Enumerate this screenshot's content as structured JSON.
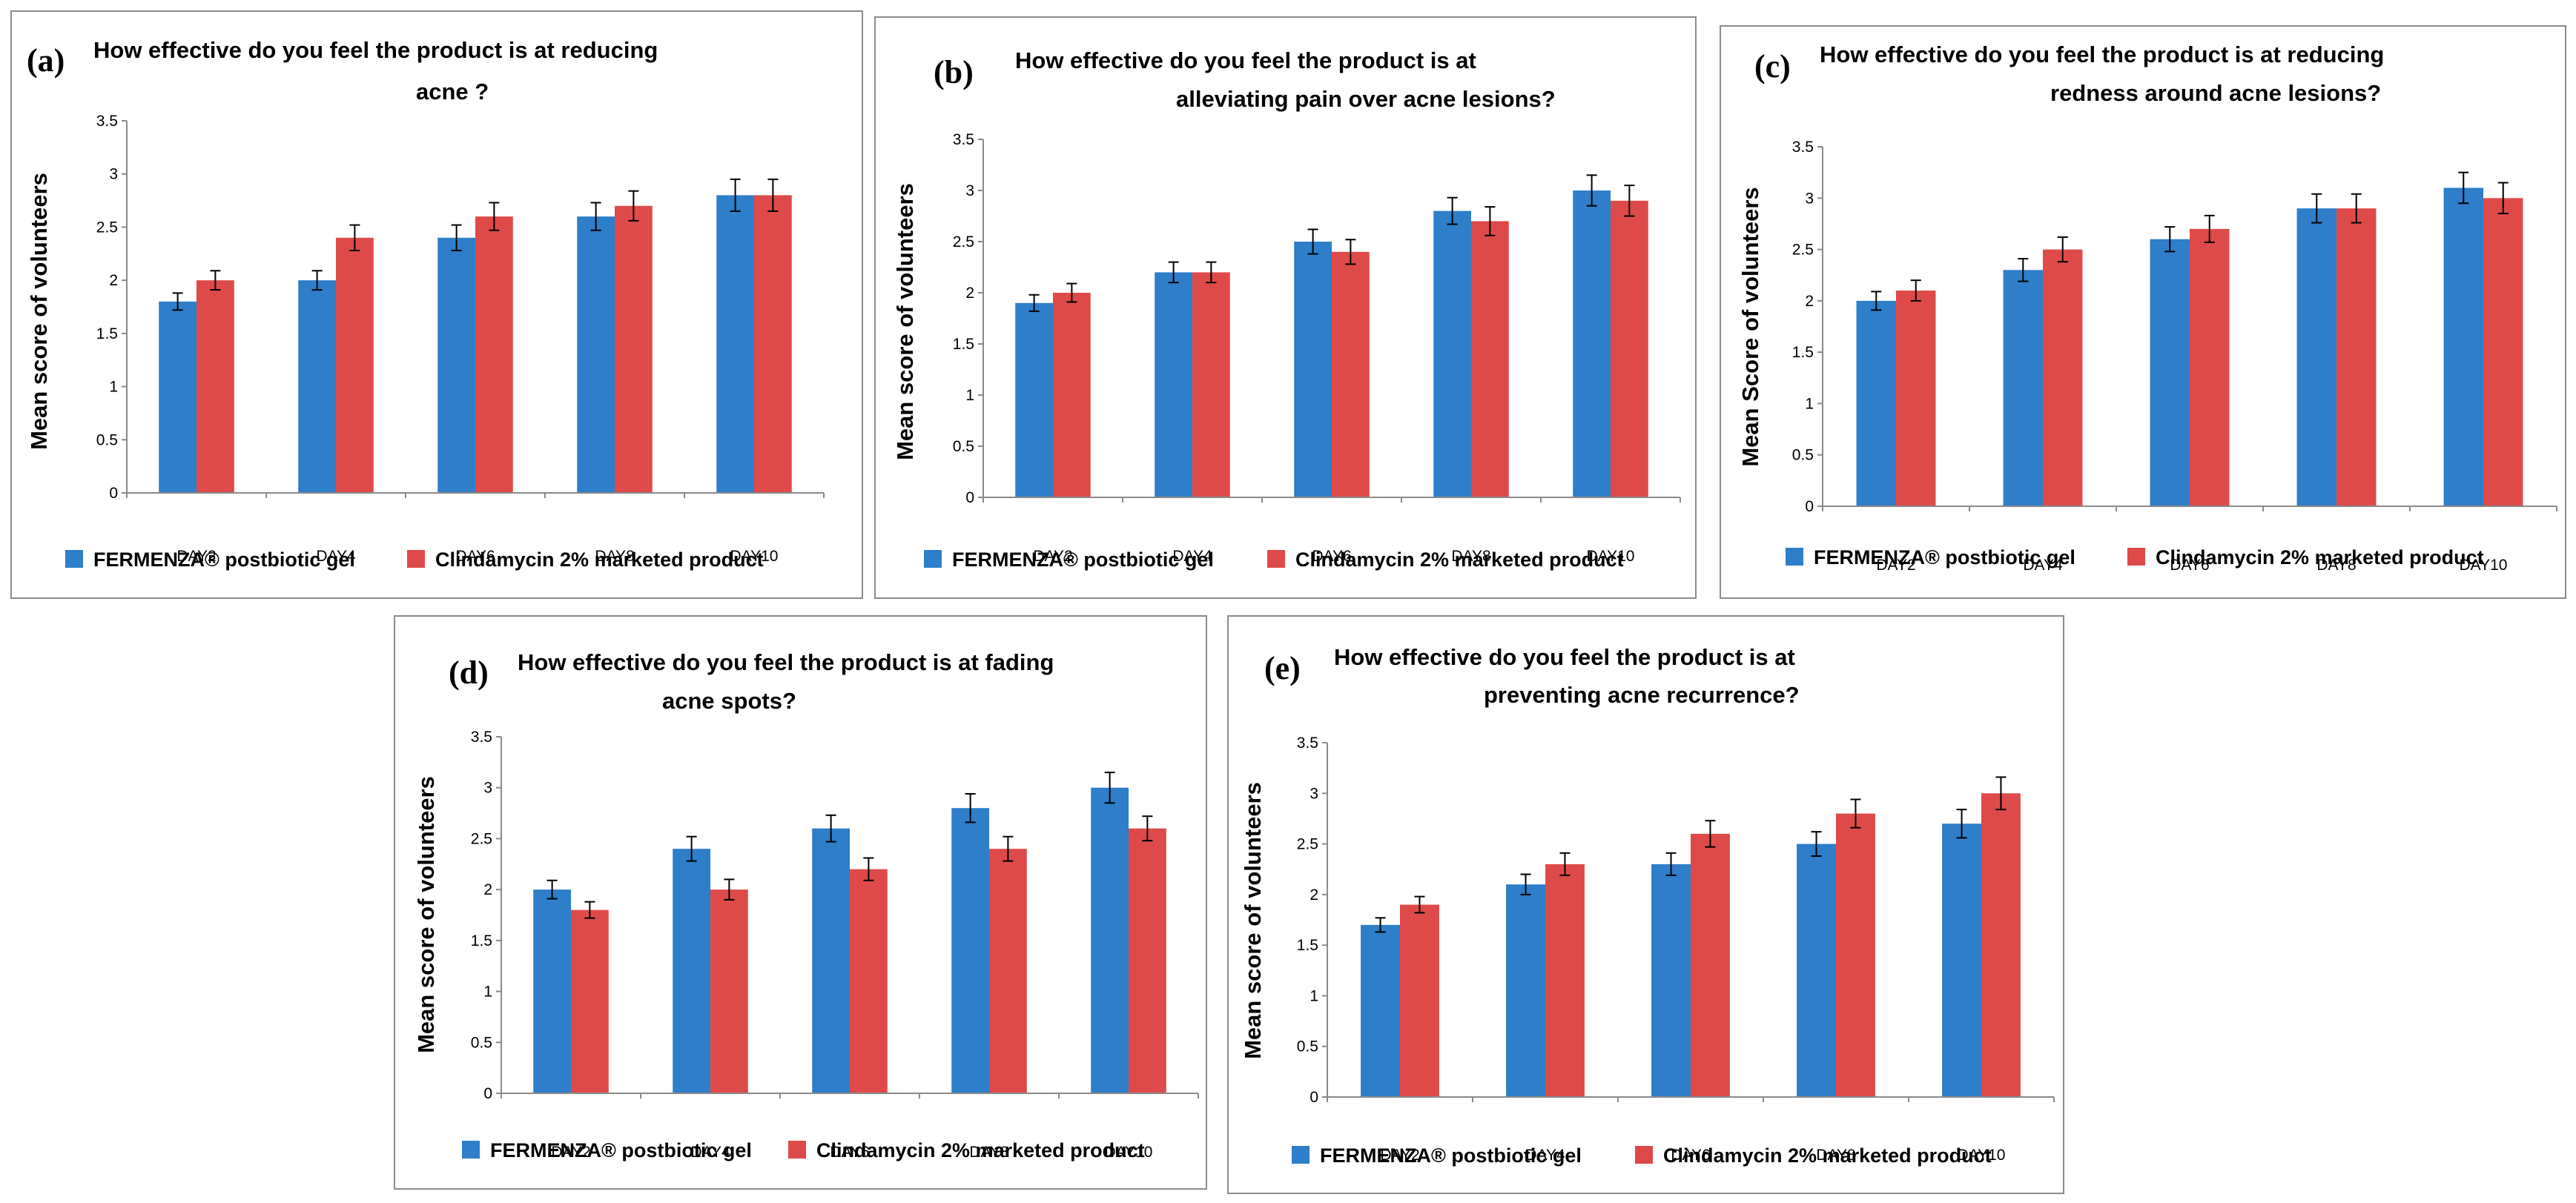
{
  "chart_data": [
    {
      "type": "bar",
      "panel_label": "(a)",
      "title_lines": [
        "How effective do you feel the product is at reducing",
        "acne ?"
      ],
      "ylabel": "Mean score of volunteers",
      "xlabel": "",
      "ylim": [
        0,
        3.5
      ],
      "yticks": [
        "0",
        "0.5",
        "1",
        "1.5",
        "2",
        "2.5",
        "3",
        "3.5"
      ],
      "categories": [
        "DAY2",
        "DAY4",
        "DAY6",
        "DAY8",
        "DAY10"
      ],
      "series": [
        {
          "name": "FERMENZA® postbiotic gel",
          "color": "#2e7ec9",
          "values": [
            1.8,
            2.0,
            2.4,
            2.6,
            2.8
          ],
          "errors": [
            0.08,
            0.09,
            0.12,
            0.13,
            0.15
          ]
        },
        {
          "name": "Clindamycin 2% marketed product",
          "color": "#de4a4a",
          "values": [
            2.0,
            2.4,
            2.6,
            2.7,
            2.8
          ],
          "errors": [
            0.09,
            0.12,
            0.13,
            0.14,
            0.15
          ]
        }
      ]
    },
    {
      "type": "bar",
      "panel_label": "(b)",
      "title_lines": [
        "How effective do you feel the product is at",
        "alleviating pain over acne lesions?"
      ],
      "ylabel": "Mean score of volunteers",
      "xlabel": "",
      "ylim": [
        0,
        3.5
      ],
      "yticks": [
        "0",
        "0.5",
        "1",
        "1.5",
        "2",
        "2.5",
        "3",
        "3.5"
      ],
      "categories": [
        "DAY2",
        "DAY4",
        "DAY6",
        "DAY8",
        "DAY10"
      ],
      "series": [
        {
          "name": "FERMENZA® postbiotic gel",
          "color": "#2e7ec9",
          "values": [
            1.9,
            2.2,
            2.5,
            2.8,
            3.0
          ],
          "errors": [
            0.08,
            0.1,
            0.12,
            0.13,
            0.15
          ]
        },
        {
          "name": "Clindamycin 2% marketed product",
          "color": "#de4a4a",
          "values": [
            2.0,
            2.2,
            2.4,
            2.7,
            2.9
          ],
          "errors": [
            0.09,
            0.1,
            0.12,
            0.14,
            0.15
          ]
        }
      ]
    },
    {
      "type": "bar",
      "panel_label": "(c)",
      "title_lines": [
        "How effective do you feel the product is at reducing",
        "redness around acne lesions?"
      ],
      "ylabel": "Mean Score of volunteers",
      "xlabel": "",
      "ylim": [
        0,
        3.5
      ],
      "yticks": [
        "0",
        "0.5",
        "1",
        "1.5",
        "2",
        "2.5",
        "3",
        "3.5"
      ],
      "categories": [
        "DAY2",
        "DAY4",
        "DAY6",
        "DAY8",
        "DAY10"
      ],
      "series": [
        {
          "name": "FERMENZA® postbiotic gel",
          "color": "#2e7ec9",
          "values": [
            2.0,
            2.3,
            2.6,
            2.9,
            3.1
          ],
          "errors": [
            0.09,
            0.11,
            0.12,
            0.14,
            0.15
          ]
        },
        {
          "name": "Clindamycin 2% marketed product",
          "color": "#de4a4a",
          "values": [
            2.1,
            2.5,
            2.7,
            2.9,
            3.0
          ],
          "errors": [
            0.1,
            0.12,
            0.13,
            0.14,
            0.15
          ]
        }
      ]
    },
    {
      "type": "bar",
      "panel_label": "(d)",
      "title_lines": [
        "How effective do you feel the product is at fading",
        "acne spots?"
      ],
      "ylabel": "Mean score of volunteers",
      "xlabel": "",
      "ylim": [
        0,
        3.5
      ],
      "yticks": [
        "0",
        "0.5",
        "1",
        "1.5",
        "2",
        "2.5",
        "3",
        "3.5"
      ],
      "categories": [
        "DAY2",
        "DAY4",
        "DAY6",
        "DAY8",
        "DAY10"
      ],
      "series": [
        {
          "name": "FERMENZA® postbiotic gel",
          "color": "#2e7ec9",
          "values": [
            2.0,
            2.4,
            2.6,
            2.8,
            3.0
          ],
          "errors": [
            0.09,
            0.12,
            0.13,
            0.14,
            0.15
          ]
        },
        {
          "name": "Clindamycin 2% marketed product",
          "color": "#de4a4a",
          "values": [
            1.8,
            2.0,
            2.2,
            2.4,
            2.6
          ],
          "errors": [
            0.08,
            0.1,
            0.11,
            0.12,
            0.12
          ]
        }
      ]
    },
    {
      "type": "bar",
      "panel_label": "(e)",
      "title_lines": [
        "How effective do you feel the product is at",
        "preventing acne recurrence?"
      ],
      "ylabel": "Mean score of volunteers",
      "xlabel": "",
      "ylim": [
        0,
        3.5
      ],
      "yticks": [
        "0",
        "0.5",
        "1",
        "1.5",
        "2",
        "2.5",
        "3",
        "3.5"
      ],
      "categories": [
        "DAY2",
        "DAY4",
        "DAY6",
        "DAY8",
        "DAY10"
      ],
      "series": [
        {
          "name": "FERMENZA® postbiotic gel",
          "color": "#2e7ec9",
          "values": [
            1.7,
            2.1,
            2.3,
            2.5,
            2.7
          ],
          "errors": [
            0.07,
            0.1,
            0.11,
            0.12,
            0.14
          ]
        },
        {
          "name": "Clindamycin 2% marketed product",
          "color": "#de4a4a",
          "values": [
            1.9,
            2.3,
            2.6,
            2.8,
            3.0
          ],
          "errors": [
            0.08,
            0.11,
            0.13,
            0.14,
            0.16
          ]
        }
      ]
    }
  ]
}
